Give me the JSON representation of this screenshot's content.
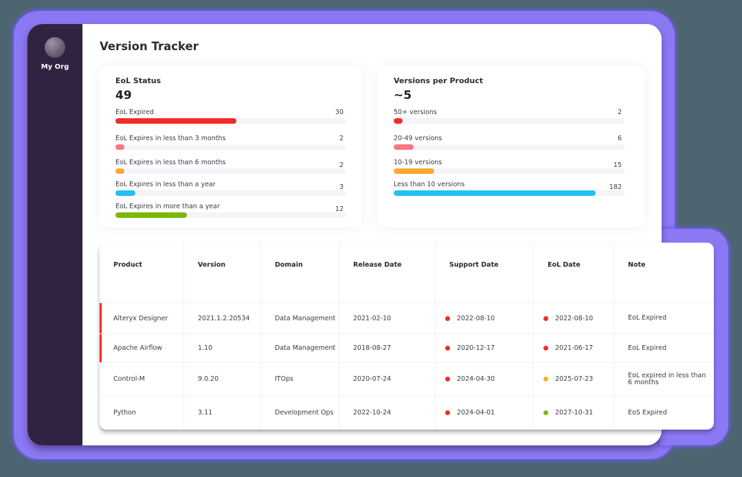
{
  "app": {
    "org_name": "My Org",
    "page_title": "Version Tracker"
  },
  "eol_status": {
    "title": "EoL Status",
    "total": "49",
    "rows": [
      {
        "label": "EoL Expired",
        "value": "30",
        "pct": 52.5,
        "color": "#f22b26"
      },
      {
        "label": "EoL Expires in less than 3 months",
        "value": "2",
        "pct": 4,
        "color": "#f87782"
      },
      {
        "label": "EoL Expires in less than 6 months",
        "value": "2",
        "pct": 4,
        "color": "#ffa733"
      },
      {
        "label": "EoL Expires in less than a year",
        "value": "3",
        "pct": 8.5,
        "color": "#23bff5"
      },
      {
        "label": "EoL Expires in more than a year",
        "value": "12",
        "pct": 31,
        "color": "#7cb70b"
      }
    ]
  },
  "versions_per_product": {
    "title": "Versions per Product",
    "total": "~5",
    "rows": [
      {
        "label": "50+ versions",
        "value": "2",
        "pct": 4,
        "color": "#f22b26"
      },
      {
        "label": "20-49 versions",
        "value": "6",
        "pct": 8.5,
        "color": "#f87782"
      },
      {
        "label": "10-19 versions",
        "value": "15",
        "pct": 17.5,
        "color": "#ffa733"
      },
      {
        "label": "Less than 10 versions",
        "value": "182",
        "pct": 87.5,
        "color": "#23bff5"
      }
    ]
  },
  "table": {
    "columns": [
      "Product",
      "Version",
      "Domain",
      "Release Date",
      "Support Date",
      "EoL Date",
      "Note"
    ],
    "rows": [
      {
        "product": "Alteryx Designer",
        "version": "2021.1.2.20534",
        "domain": "Data Management",
        "release": "2021-02-10",
        "support": "2022-08-10",
        "support_color": "#f22b26",
        "eol": "2022-08-10",
        "eol_color": "#f22b26",
        "note": "EoL Expired",
        "flagged": true
      },
      {
        "product": "Apache Airflow",
        "version": "1.10",
        "domain": "Data Management",
        "release": "2018-08-27",
        "support": "2020-12-17",
        "support_color": "#f22b26",
        "eol": "2021-06-17",
        "eol_color": "#f22b26",
        "note": "EoL Expired",
        "flagged": true
      },
      {
        "product": "Control-M",
        "version": "9.0.20",
        "domain": "ITOps",
        "release": "2020-07-24",
        "support": "2024-04-30",
        "support_color": "#f22b26",
        "eol": "2025-07-23",
        "eol_color": "#ffb31a",
        "note": "EoL expired in less than 6 months",
        "flagged": false
      },
      {
        "product": "Python",
        "version": "3.11",
        "domain": "Development Ops",
        "release": "2022-10-24",
        "support": "2024-04-01",
        "support_color": "#f22b26",
        "eol": "2027-10-31",
        "eol_color": "#7cb70b",
        "note": "EoS Expired",
        "flagged": false
      }
    ]
  },
  "colors": {
    "sidebar": "#2f2341",
    "glow": "#8b78f4",
    "background": "#4d6570",
    "flag": "#f22b26"
  }
}
